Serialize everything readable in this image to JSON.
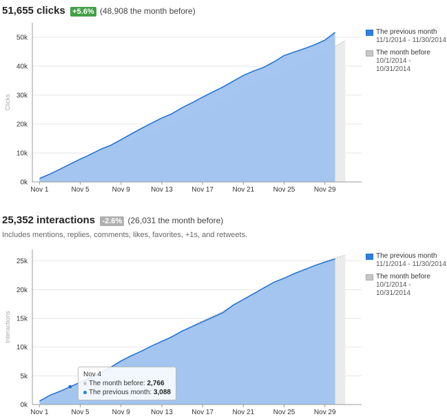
{
  "colors": {
    "current_fill": "#9fc3ef",
    "current_line": "#1f6fd0",
    "prev_fill": "#ebebeb",
    "prev_line": "#b3b3b3",
    "badge_up": "#43a047",
    "badge_down": "#b0b0b0"
  },
  "clicks": {
    "total": "51,655 clicks",
    "badge": "+5.6%",
    "compare": "(48,908 the month before)",
    "legend": [
      {
        "label": "The previous month",
        "range": "11/1/2014 - 11/30/2014",
        "color": "#2f7fe0"
      },
      {
        "label": "The month before",
        "range": "10/1/2014 - 10/31/2014",
        "color": "#c7c7c7"
      }
    ]
  },
  "interactions": {
    "total": "25,352 interactions",
    "badge": "-2.6%",
    "compare": "(26,031 the month before)",
    "note": "Includes mentions, replies, comments, likes, favorites, +1s, and retweets.",
    "legend": [
      {
        "label": "The previous month",
        "range": "11/1/2014 - 11/30/2014",
        "color": "#2f7fe0"
      },
      {
        "label": "The month before",
        "range": "10/1/2014 - 10/31/2014",
        "color": "#c7c7c7"
      }
    ],
    "tooltip": {
      "title": "Nov 4",
      "prev_label": "The month before:",
      "prev_value": "2,766",
      "curr_label": "The previous month:",
      "curr_value": "3,088"
    }
  },
  "chart_data": [
    {
      "type": "area",
      "ylabel": "Clicks",
      "ylim": [
        0,
        55000
      ],
      "yticks": [
        0,
        10000,
        20000,
        30000,
        40000,
        50000
      ],
      "ytick_labels": [
        "0k",
        "10k",
        "20k",
        "30k",
        "40k",
        "50k"
      ],
      "xticks": [
        1,
        5,
        9,
        13,
        17,
        21,
        25,
        29
      ],
      "xtick_labels": [
        "Nov 1",
        "Nov 5",
        "Nov 9",
        "Nov 13",
        "Nov 17",
        "Nov 21",
        "Nov 25",
        "Nov 29"
      ],
      "xlim": [
        0.3,
        32.6
      ],
      "grid": true,
      "legend_position": "right",
      "series": [
        {
          "name": "The previous month",
          "x": [
            1,
            2,
            3,
            4,
            5,
            6,
            7,
            8,
            9,
            10,
            11,
            12,
            13,
            14,
            15,
            16,
            17,
            18,
            19,
            20,
            21,
            22,
            23,
            24,
            25,
            26,
            27,
            28,
            29,
            30
          ],
          "values": [
            1200,
            2700,
            4400,
            6200,
            7900,
            9500,
            11300,
            12700,
            14600,
            16600,
            18500,
            20300,
            22100,
            23600,
            25700,
            27400,
            29300,
            31100,
            32800,
            34800,
            36800,
            38300,
            39600,
            41500,
            43700,
            44900,
            46100,
            47400,
            49000,
            51655
          ]
        },
        {
          "name": "The month before",
          "x": [
            1,
            2,
            3,
            4,
            5,
            6,
            7,
            8,
            9,
            10,
            11,
            12,
            13,
            14,
            15,
            16,
            17,
            18,
            19,
            20,
            21,
            22,
            23,
            24,
            25,
            26,
            27,
            28,
            29,
            30,
            31
          ],
          "values": [
            800,
            2300,
            3900,
            5600,
            7100,
            8500,
            10100,
            11500,
            13000,
            14300,
            15600,
            16900,
            18200,
            19700,
            21400,
            23000,
            24800,
            26400,
            28200,
            30200,
            32500,
            33800,
            35300,
            36600,
            38100,
            39600,
            41500,
            43200,
            45100,
            46800,
            48908
          ]
        }
      ]
    },
    {
      "type": "area",
      "ylabel": "Interactions",
      "ylim": [
        0,
        27000
      ],
      "yticks": [
        0,
        5000,
        10000,
        15000,
        20000,
        25000
      ],
      "ytick_labels": [
        "0k",
        "5k",
        "10k",
        "15k",
        "20k",
        "25k"
      ],
      "xticks": [
        1,
        5,
        9,
        13,
        17,
        21,
        25,
        29
      ],
      "xtick_labels": [
        "Nov 1",
        "Nov 5",
        "Nov 9",
        "Nov 13",
        "Nov 17",
        "Nov 21",
        "Nov 25",
        "Nov 29"
      ],
      "xlim": [
        0.3,
        32.6
      ],
      "grid": true,
      "legend_position": "right",
      "series": [
        {
          "name": "The previous month",
          "x": [
            1,
            2,
            3,
            4,
            5,
            6,
            7,
            8,
            9,
            10,
            11,
            12,
            13,
            14,
            15,
            16,
            17,
            18,
            19,
            20,
            21,
            22,
            23,
            24,
            25,
            26,
            27,
            28,
            29,
            30
          ],
          "values": [
            600,
            1600,
            2300,
            3088,
            3900,
            4700,
            5500,
            6500,
            7600,
            8500,
            9300,
            10200,
            11000,
            11800,
            12800,
            13600,
            14400,
            15200,
            16000,
            17300,
            18300,
            19300,
            20300,
            21300,
            22000,
            22800,
            23500,
            24200,
            24800,
            25352
          ]
        },
        {
          "name": "The month before",
          "x": [
            1,
            2,
            3,
            4,
            5,
            6,
            7,
            8,
            9,
            10,
            11,
            12,
            13,
            14,
            15,
            16,
            17,
            18,
            19,
            20,
            21,
            22,
            23,
            24,
            25,
            26,
            27,
            28,
            29,
            30,
            31
          ],
          "values": [
            500,
            1200,
            2000,
            2766,
            3600,
            4500,
            5400,
            6400,
            7400,
            8300,
            9200,
            10100,
            11000,
            11900,
            12800,
            13700,
            14600,
            15400,
            16300,
            17200,
            18100,
            19000,
            19900,
            20800,
            21700,
            22500,
            23300,
            24100,
            24900,
            25500,
            26031
          ]
        }
      ]
    }
  ]
}
